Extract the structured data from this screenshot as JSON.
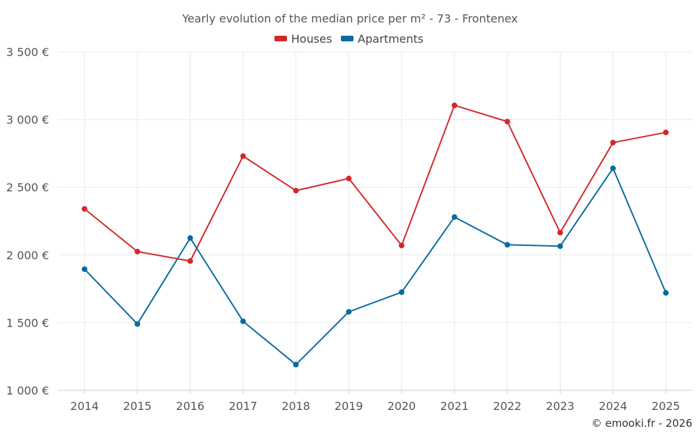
{
  "chart_data": {
    "type": "line",
    "title": "Yearly evolution of the median price per m² - 73 - Frontenex",
    "categories": [
      "2014",
      "2015",
      "2016",
      "2017",
      "2018",
      "2019",
      "2020",
      "2021",
      "2022",
      "2023",
      "2024",
      "2025"
    ],
    "series": [
      {
        "name": "Houses",
        "color": "#d62728",
        "values": [
          2340,
          2025,
          1955,
          2730,
          2475,
          2565,
          2070,
          3105,
          2985,
          2165,
          2830,
          2905
        ]
      },
      {
        "name": "Apartments",
        "color": "#0a6aa1",
        "values": [
          1895,
          1490,
          2125,
          1510,
          1190,
          1580,
          1725,
          2280,
          2075,
          2065,
          2640,
          1720
        ]
      }
    ],
    "ylim": [
      1000,
      3500
    ],
    "yticks": [
      1000,
      1500,
      2000,
      2500,
      3000,
      3500
    ],
    "ytick_labels": [
      "1 000 €",
      "1 500 €",
      "2 000 €",
      "2 500 €",
      "3 000 €",
      "3 500 €"
    ],
    "xlabel": "",
    "ylabel": "",
    "grid": true,
    "legend_position": "top-center"
  },
  "footer": {
    "credit": "© emooki.fr - 2026"
  }
}
